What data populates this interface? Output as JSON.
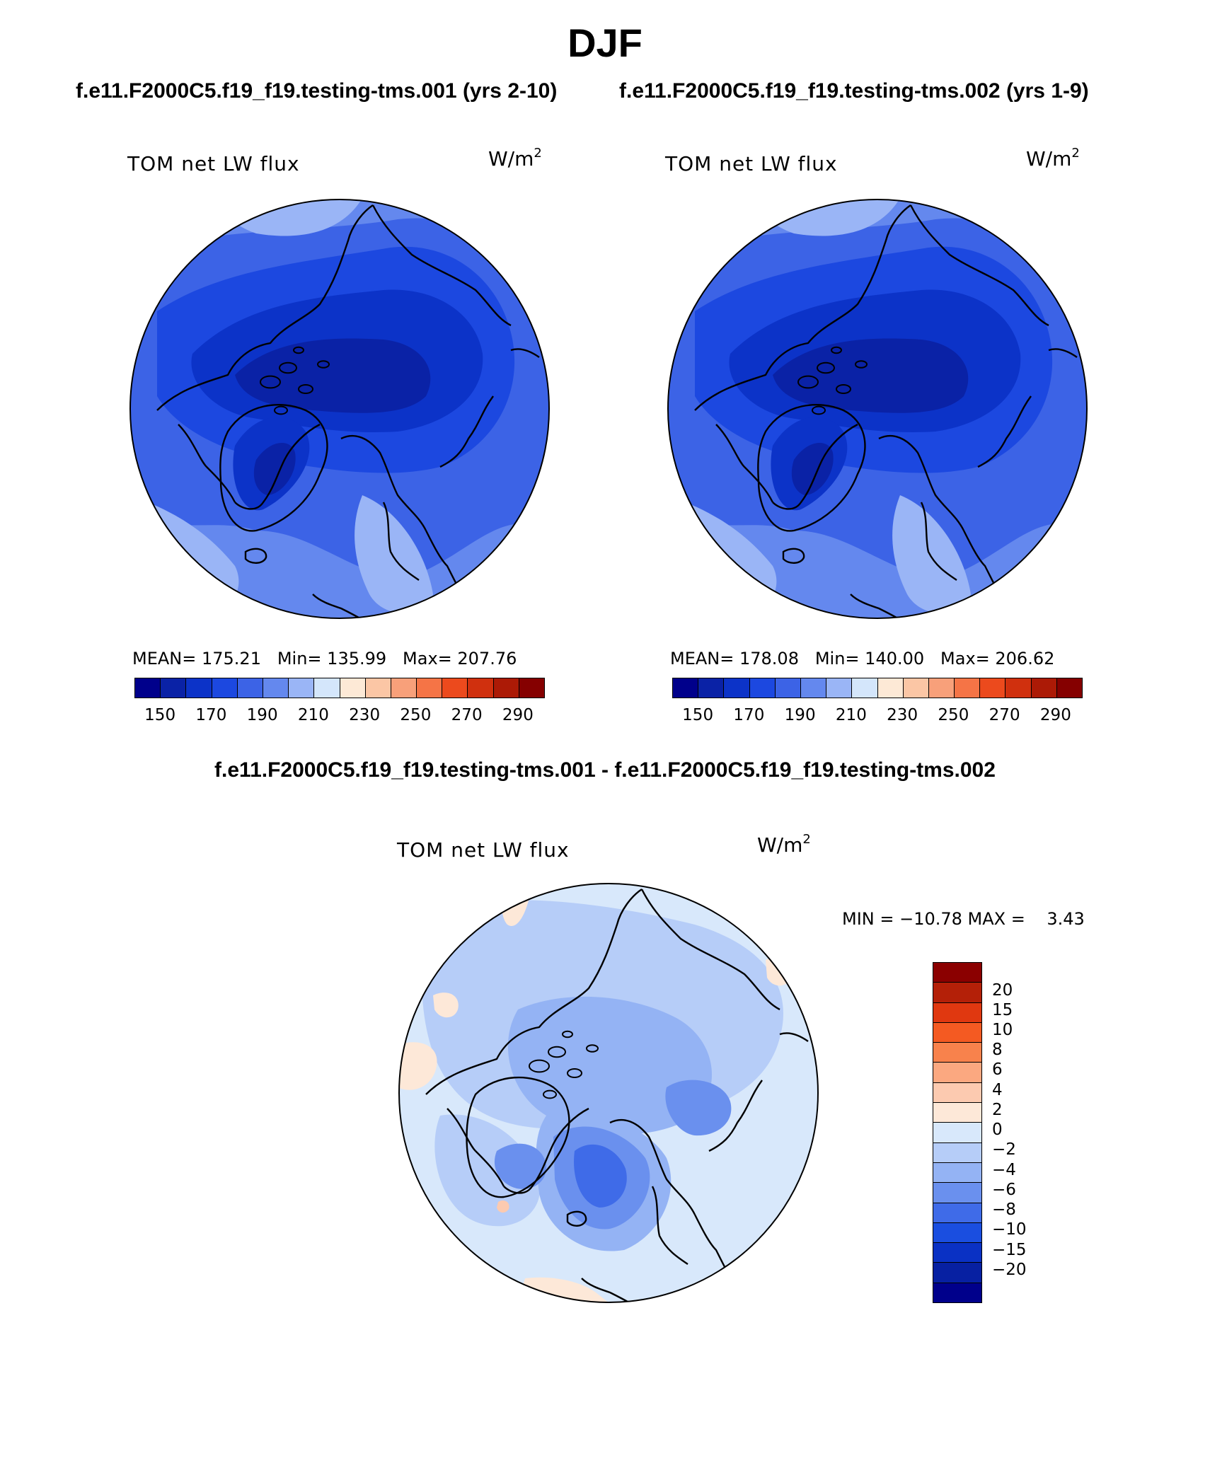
{
  "header": {
    "season": "DJF",
    "case_left": "f.e11.F2000C5.f19_f19.testing-tms.001 (yrs 2-10)",
    "case_right": "f.e11.F2000C5.f19_f19.testing-tms.002 (yrs 1-9)",
    "diff_title": "f.e11.F2000C5.f19_f19.testing-tms.001 - f.e11.F2000C5.f19_f19.testing-tms.002"
  },
  "panels": {
    "left": {
      "variable": "TOM net LW flux",
      "units_base": "W/m",
      "units_exp": "2",
      "stats": "MEAN= 175.21   Min= 135.99   Max= 207.76"
    },
    "right": {
      "variable": "TOM net LW flux",
      "units_base": "W/m",
      "units_exp": "2",
      "stats": "MEAN= 178.08   Min= 140.00   Max= 206.62"
    },
    "diff": {
      "variable": "TOM net LW flux",
      "units_base": "W/m",
      "units_exp": "2",
      "stats": "MIN = −10.78 MAX =    3.43"
    }
  },
  "colorbars": {
    "absolute": {
      "colors": [
        "#00008b",
        "#0a22a6",
        "#0c33c8",
        "#1c48e0",
        "#3c63e6",
        "#6488ee",
        "#9ab5f6",
        "#d4e6fb",
        "#fde9d6",
        "#fbc6a5",
        "#f8a07a",
        "#f57446",
        "#ec4a1d",
        "#d0300e",
        "#ac1a06",
        "#850000"
      ],
      "tick_labels": [
        "150",
        "170",
        "190",
        "210",
        "230",
        "250",
        "270",
        "290"
      ]
    },
    "difference": {
      "colors": [
        "#8b0000",
        "#b42008",
        "#e03810",
        "#f45a22",
        "#f8824c",
        "#fba880",
        "#fccab0",
        "#fde8d8",
        "#d8e8fb",
        "#b6cdf8",
        "#94b3f4",
        "#6a90ee",
        "#3f6be8",
        "#1a4ee0",
        "#0a31c4",
        "#0720a2",
        "#00008b"
      ],
      "tick_labels": [
        "20",
        "15",
        "10",
        "8",
        "6",
        "4",
        "2",
        "0",
        "−2",
        "−4",
        "−6",
        "−8",
        "−10",
        "−15",
        "−20"
      ]
    }
  },
  "map_colors": {
    "abs_deep": "#0a22a6",
    "abs_dark": "#0c33c8",
    "abs_mid": "#1c48e0",
    "abs_base": "#3c63e6",
    "abs_light": "#6488ee",
    "abs_pale": "#9ab5f6",
    "diff_base": "#d8e8fb",
    "diff_light": "#b6cdf8",
    "diff_mid": "#94b3f4",
    "diff_strong": "#6a90ee",
    "diff_deep": "#3f6be8",
    "diff_warm": "#fde8d8",
    "diff_warm2": "#fccab0",
    "coast": "#000000"
  }
}
